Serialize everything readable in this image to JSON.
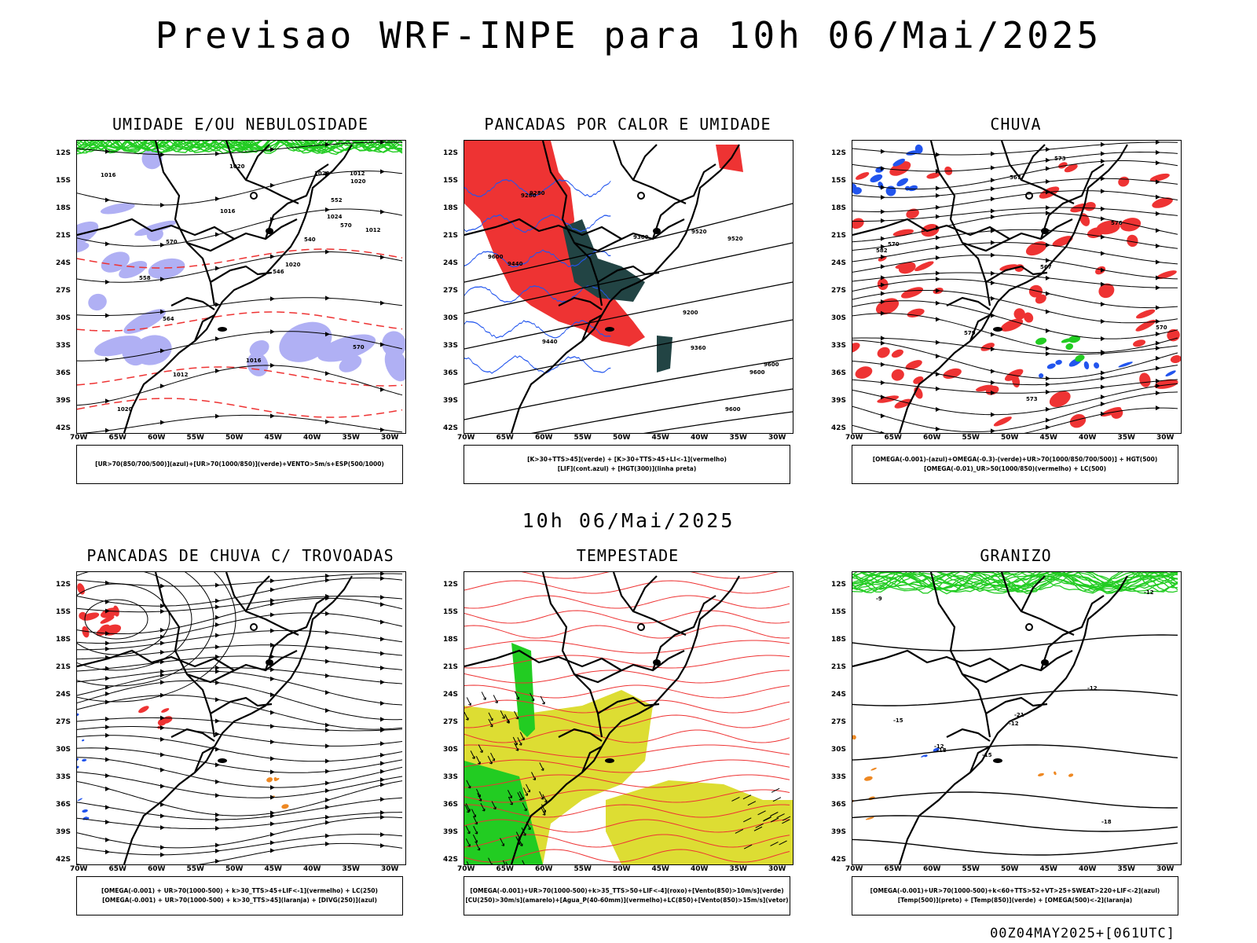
{
  "title": "Previsao WRF-INPE  para 10h 06/Mai/2025",
  "mid_label": "10h 06/Mai/2025",
  "footer": "00Z04MAY2025+[061UTC]",
  "lat_labels": [
    "12S",
    "15S",
    "18S",
    "21S",
    "24S",
    "27S",
    "30S",
    "33S",
    "36S",
    "39S",
    "42S"
  ],
  "lon_labels": [
    "70W",
    "65W",
    "60W",
    "55W",
    "50W",
    "45W",
    "40W",
    "35W",
    "30W"
  ],
  "colors": {
    "green": "#22cc22",
    "red": "#ee3333",
    "blue": "#2255ee",
    "lavender": "#b0b0f4",
    "yellow": "#dddd33",
    "darkteal": "#224444",
    "orange": "#ee8822",
    "purple": "#aa44cc"
  },
  "panels": [
    {
      "title": "UMIDADE E/OU NEBULOSIDADE",
      "legend": [
        "[UR>70(850/700/500)](azul)+[UR>70(1000/850)](verde)+VENTO>5m/s+ESP(500/1000)"
      ],
      "contour_labels": [
        "1016",
        "1016",
        "1016",
        "1020",
        "1020",
        "1020",
        "1020",
        "1020",
        "1024",
        "1012",
        "1012",
        "1012",
        "570",
        "570",
        "570",
        "564",
        "558",
        "552",
        "546",
        "540"
      ]
    },
    {
      "title": "PANCADAS POR CALOR E UMIDADE",
      "legend": [
        "[K>30+TTS>45](verde) + [K>30+TTS>45+LI<-1](vermelho)",
        "[LIF](cont.azul) + [HGT(300)](linha preta)"
      ],
      "contour_labels": [
        "9600",
        "9600",
        "9600",
        "9600",
        "9520",
        "9520",
        "9440",
        "9440",
        "9360",
        "9360",
        "9280",
        "9280",
        "9200"
      ]
    },
    {
      "title": "CHUVA",
      "legend": [
        "[OMEGA(-0.001)-(azul)+OMEGA(-0.3)-(verde)+UR>70(1000/850/700/500)] + HGT(500)",
        "[OMEGA(-0.01)_UR>50(1000/850)(vermelho) + LC(500)"
      ],
      "contour_labels": [
        "582",
        "579",
        "576",
        "573",
        "570",
        "567",
        "573",
        "570",
        "567"
      ]
    },
    {
      "title": "PANCADAS DE CHUVA C/ TROVOADAS",
      "legend": [
        "[OMEGA(-0.001) + UR>70(1000-500) + k>30_TTS>45+LIF<-1](vermelho) + LC(250)",
        "[OMEGA(-0.001) + UR>70(1000-500) + k>30_TTS>45](laranja) + [DIVG(250)](azul)"
      ],
      "contour_labels": []
    },
    {
      "title": "TEMPESTADE",
      "legend": [
        "[OMEGA(-0.001)+UR>70(1000-500)+k>35_TTS>50+LIF<-4](roxo)+[Vento(850)>10m/s](verde)",
        "[CU(250)>30m/s](amarelo)+[Agua_P(40-60mm)](vermelho)+LC(850)+[Vento(850)>15m/s](vetor)"
      ],
      "contour_labels": []
    },
    {
      "title": "GRANIZO",
      "legend": [
        "[OMEGA(-0.001)+UR>70(1000-500)+k<60+TTS>52+VT>25+SWEAT>220+LIF<-2](azul)",
        "[Temp(500)](preto) + [Temp(850)](verde) + [OMEGA(500)<-2](laranja)"
      ],
      "contour_labels": [
        "-9",
        "-12",
        "-12",
        "-12",
        "-15",
        "-18",
        "-18",
        "-21",
        "-15",
        "-12"
      ]
    }
  ]
}
